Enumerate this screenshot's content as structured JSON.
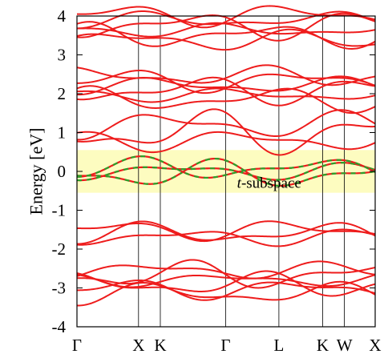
{
  "chart_data": {
    "type": "line",
    "title": "",
    "ylabel": "Energy [eV]",
    "xlabel": "",
    "ylim": [
      -4,
      4
    ],
    "yticks": [
      -4,
      -3,
      -2,
      -1,
      0,
      1,
      2,
      3,
      4
    ],
    "ytick_labels": [
      "-4",
      "-3",
      "-2",
      "-1",
      "0",
      "1",
      "2",
      "3",
      "4"
    ],
    "kpath": [
      {
        "label": "Γ",
        "pos": 0.0
      },
      {
        "label": "X",
        "pos": 1.0
      },
      {
        "label": "K",
        "pos": 1.354
      },
      {
        "label": "Γ",
        "pos": 2.414
      },
      {
        "label": "L",
        "pos": 3.28
      },
      {
        "label": "K",
        "pos": 3.99
      },
      {
        "label": "W",
        "pos": 4.344
      },
      {
        "label": "X",
        "pos": 4.844
      }
    ],
    "highlight_band": {
      "ymin": -0.55,
      "ymax": 0.55,
      "color": "#fdfcc0"
    },
    "band_color": "#ee1c1c",
    "t_band_color": "#2aa02a",
    "annotations": [
      {
        "italic": "t",
        "text": "-subspace",
        "x": 2.6,
        "y": -0.42
      }
    ],
    "band_groups": [
      {
        "name": "",
        "center": 3.7,
        "count": 6
      },
      {
        "name": "",
        "center": 2.15,
        "count": 6
      },
      {
        "name": "",
        "center": 1.0,
        "count": 3
      },
      {
        "name": "",
        "center": 0.0,
        "count": 3
      },
      {
        "name": "",
        "center": -1.6,
        "count": 3
      },
      {
        "name": "",
        "center": -2.85,
        "count": 6
      }
    ]
  }
}
